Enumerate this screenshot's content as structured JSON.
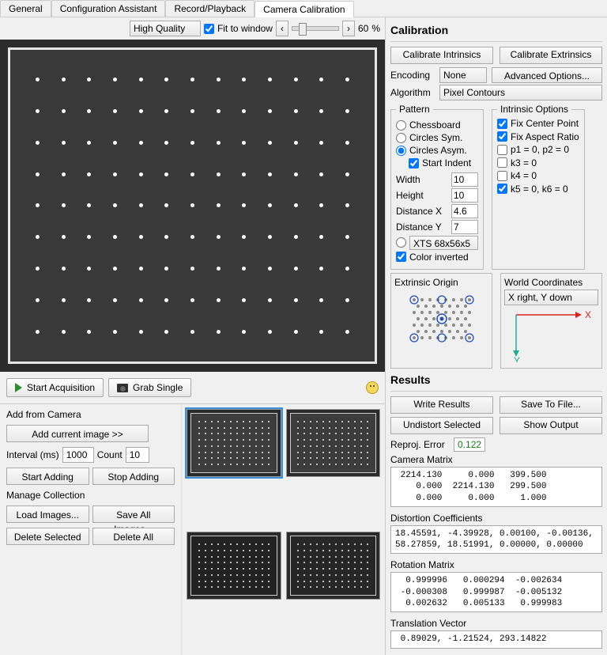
{
  "tabs": [
    "General",
    "Configuration Assistant",
    "Record/Playback",
    "Camera Calibration"
  ],
  "active_tab": 3,
  "toolbar": {
    "quality": "High Quality",
    "fit": "Fit to window",
    "zoom": "60",
    "pct": "%"
  },
  "actions": {
    "start": "Start Acquisition",
    "grab": "Grab Single"
  },
  "add_from_camera": {
    "title": "Add from Camera",
    "add_current": "Add current image >>",
    "interval_lbl": "Interval (ms)",
    "interval_val": "1000",
    "count_lbl": "Count",
    "count_val": "10",
    "start_adding": "Start Adding",
    "stop_adding": "Stop Adding"
  },
  "manage": {
    "title": "Manage Collection",
    "load": "Load Images...",
    "save": "Save All Images...",
    "delete_sel": "Delete Selected",
    "delete_all": "Delete All"
  },
  "calibration": {
    "title": "Calibration",
    "cal_intr": "Calibrate Intrinsics",
    "cal_extr": "Calibrate Extrinsics",
    "encoding_lbl": "Encoding",
    "encoding_val": "None",
    "advanced": "Advanced Options...",
    "algorithm_lbl": "Algorithm",
    "algorithm_val": "Pixel Contours",
    "pattern": {
      "legend": "Pattern",
      "chessboard": "Chessboard",
      "circles_sym": "Circles Sym.",
      "circles_asym": "Circles Asym.",
      "start_indent": "Start Indent",
      "width_lbl": "Width",
      "width_val": "10",
      "height_lbl": "Height",
      "height_val": "10",
      "distx_lbl": "Distance X",
      "distx_val": "4.6",
      "disty_lbl": "Distance Y",
      "disty_val": "7",
      "preset": "XTS 68x56x5",
      "color_inv": "Color inverted"
    },
    "intrinsic": {
      "legend": "Intrinsic Options",
      "fix_center": "Fix Center Point",
      "fix_aspect": "Fix Aspect Ratio",
      "p1p2": "p1 = 0, p2 = 0",
      "k3": "k3 = 0",
      "k4": "k4 = 0",
      "k5k6": "k5 = 0, k6 = 0"
    },
    "ext_origin": "Extrinsic Origin",
    "world_coord": "World Coordinates",
    "world_sel": "X right, Y down"
  },
  "results": {
    "title": "Results",
    "write": "Write Results",
    "save_file": "Save To File...",
    "undistort": "Undistort Selected",
    "show_output": "Show Output",
    "reproj_lbl": "Reproj. Error",
    "reproj_val": "0.122",
    "cam_matrix_lbl": "Camera Matrix",
    "cam_matrix": " 2214.130     0.000   399.500\n    0.000  2214.130   299.500\n    0.000     0.000     1.000",
    "dist_lbl": "Distortion Coefficients",
    "dist": "18.45591, -4.39928, 0.00100, -0.00136,\n58.27859, 18.51991, 0.00000, 0.00000",
    "rot_lbl": "Rotation Matrix",
    "rot": "  0.999996   0.000294  -0.002634\n -0.000308   0.999987  -0.005132\n  0.002632   0.005133   0.999983",
    "trans_lbl": "Translation Vector",
    "trans": " 0.89029, -1.21524, 293.14822"
  }
}
